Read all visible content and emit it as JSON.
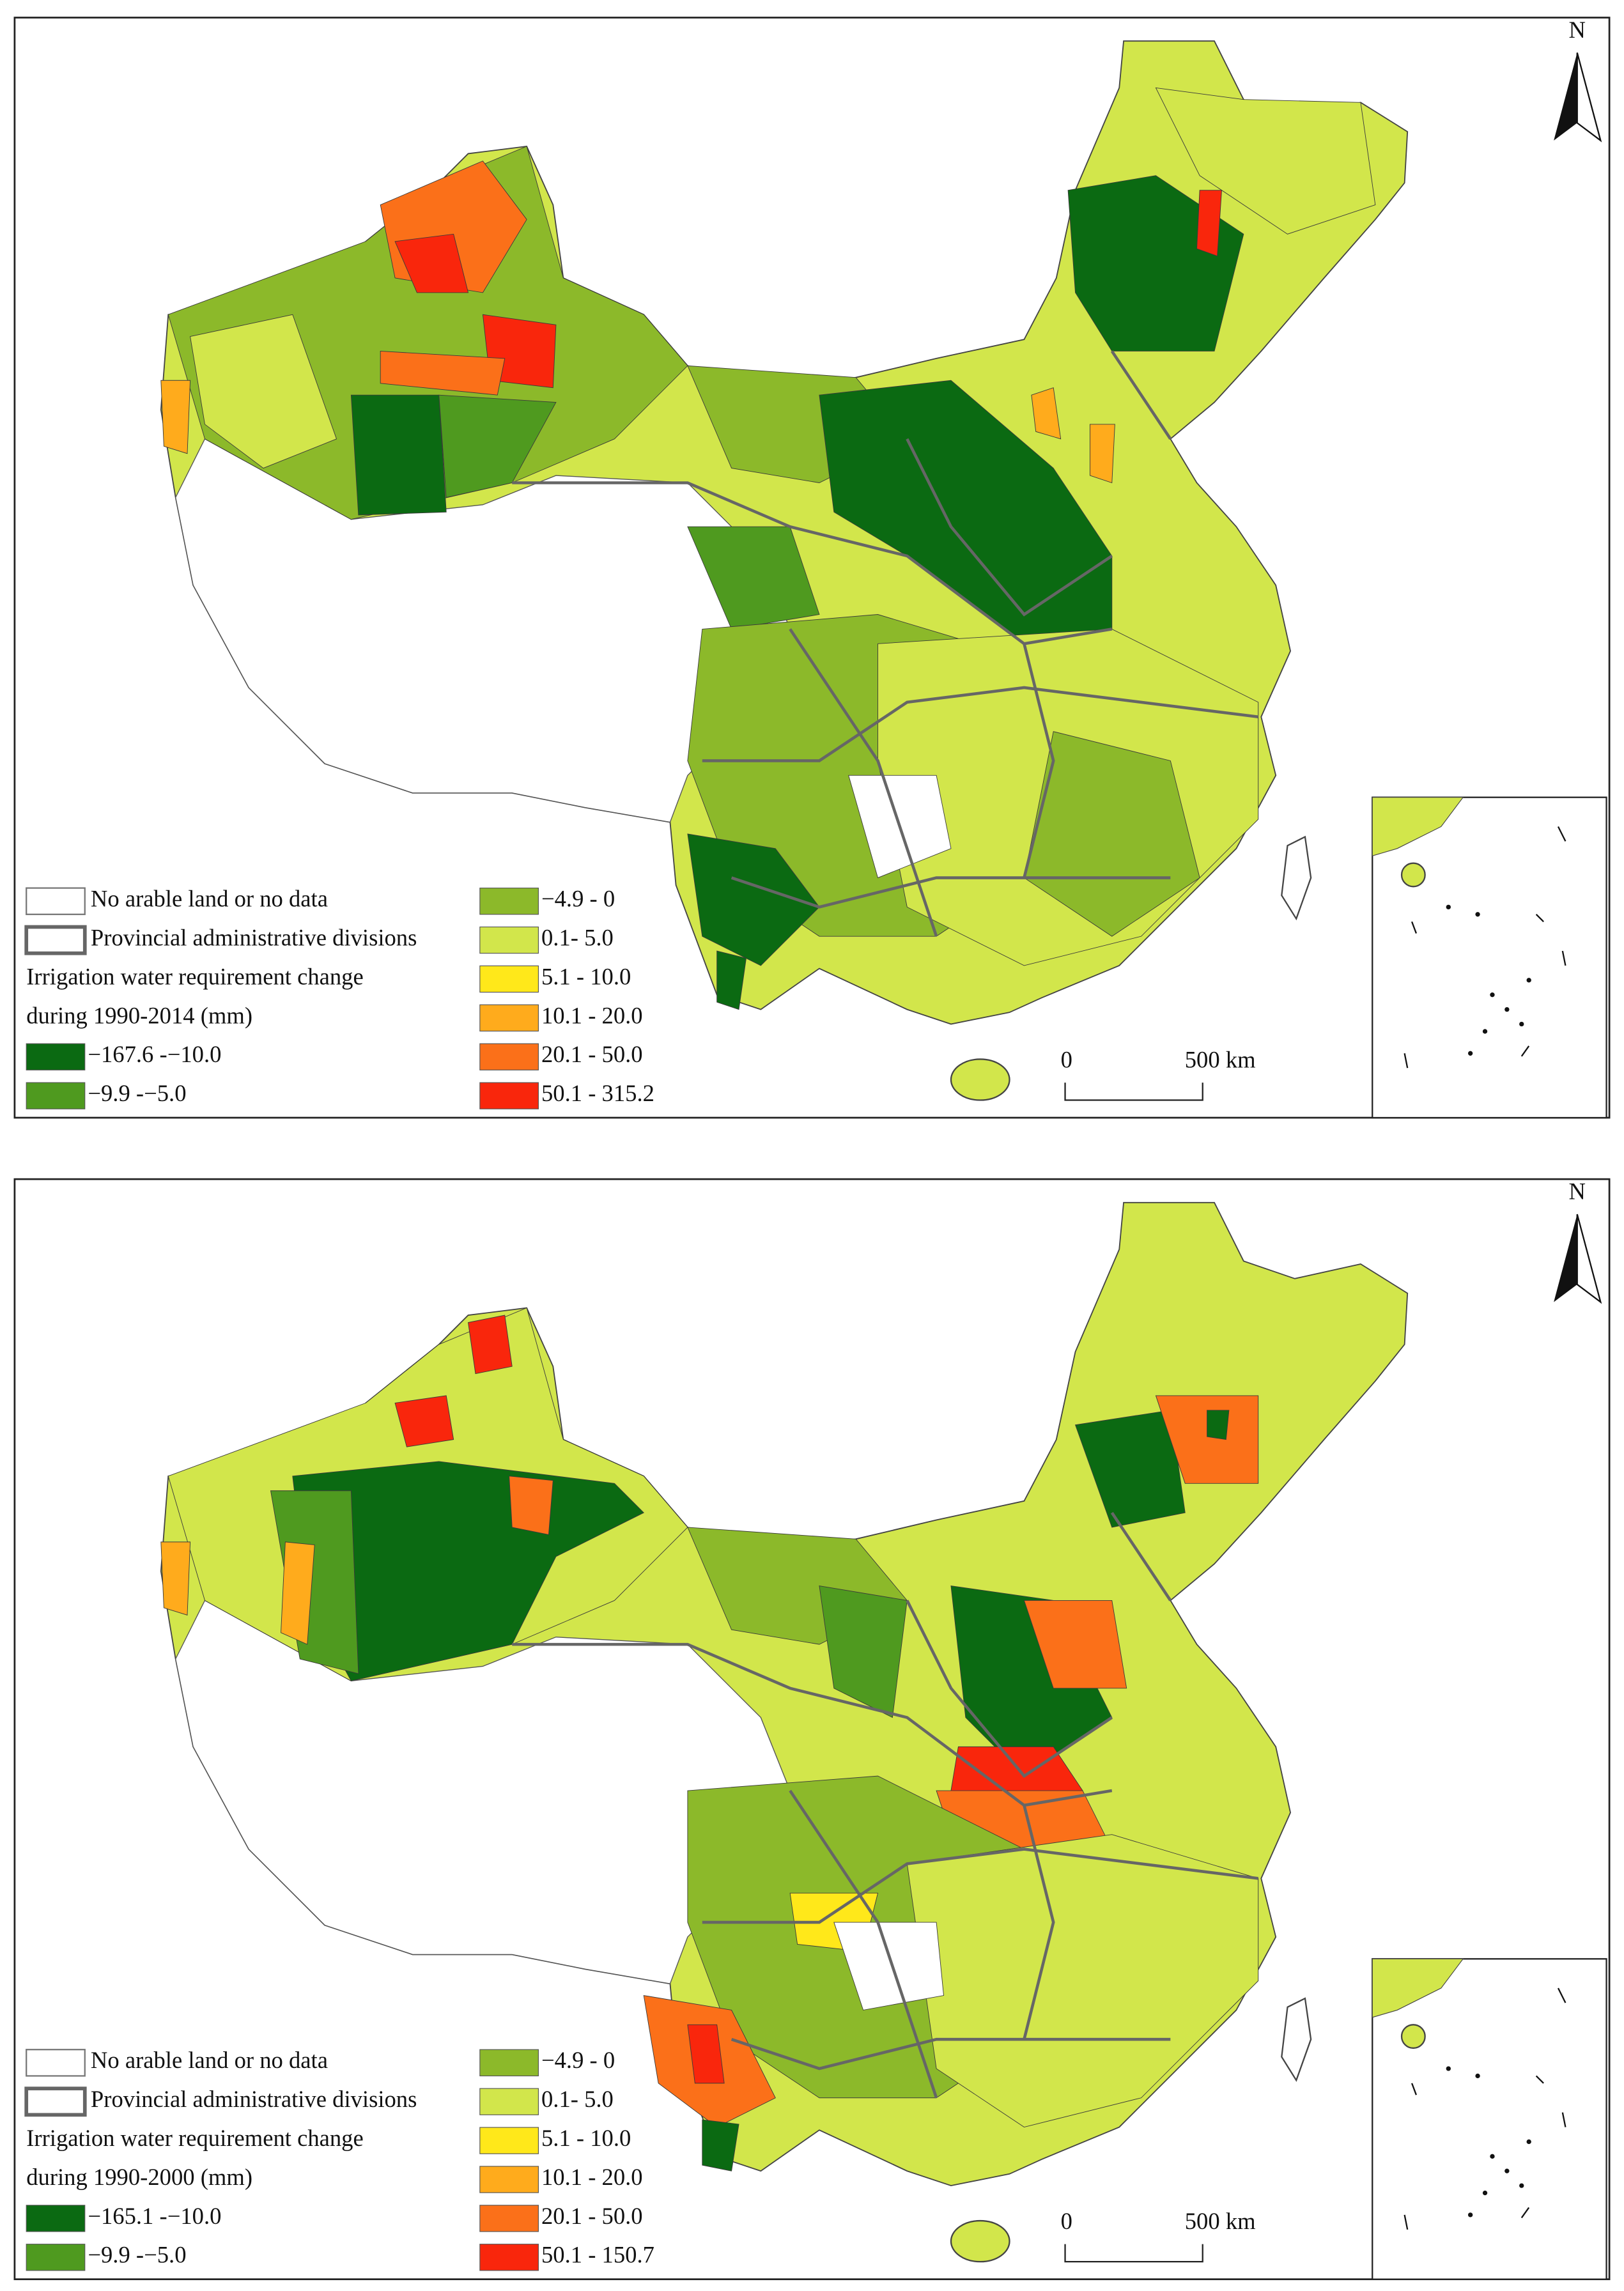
{
  "panels": [
    {
      "north": "N",
      "legend": {
        "no_data": {
          "label": "No arable land or no data",
          "color": "#ffffff"
        },
        "province": {
          "label": "Provincial administrative divisions",
          "color": "#666666"
        },
        "title_lines": [
          "Irrigation water requirement change",
          "during 1990-2014 (mm)"
        ],
        "classes": [
          {
            "label": "−167.6 -−10.0",
            "color": "#0b6a12"
          },
          {
            "label": "−9.9 -−5.0",
            "color": "#4f9a1f"
          },
          {
            "label": "−4.9 - 0",
            "color": "#8cb92a"
          },
          {
            "label": "0.1- 5.0",
            "color": "#d2e64b"
          },
          {
            "label": "5.1 - 10.0",
            "color": "#ffe81a"
          },
          {
            "label": "10.1 - 20.0",
            "color": "#ffab1c"
          },
          {
            "label": "20.1 - 50.0",
            "color": "#fb7019"
          },
          {
            "label": "50.1 - 315.2",
            "color": "#f9260c"
          }
        ]
      },
      "scale": {
        "start": "0",
        "end": "500 km"
      }
    },
    {
      "north": "N",
      "legend": {
        "no_data": {
          "label": "No arable land or no data",
          "color": "#ffffff"
        },
        "province": {
          "label": "Provincial administrative divisions",
          "color": "#666666"
        },
        "title_lines": [
          "Irrigation water requirement change",
          "during 1990-2000 (mm)"
        ],
        "classes": [
          {
            "label": "−165.1 -−10.0",
            "color": "#0b6a12"
          },
          {
            "label": "−9.9 -−5.0",
            "color": "#4f9a1f"
          },
          {
            "label": "−4.9 - 0",
            "color": "#8cb92a"
          },
          {
            "label": "0.1- 5.0",
            "color": "#d2e64b"
          },
          {
            "label": "5.1 - 10.0",
            "color": "#ffe81a"
          },
          {
            "label": "10.1 - 20.0",
            "color": "#ffab1c"
          },
          {
            "label": "20.1 - 50.0",
            "color": "#fb7019"
          },
          {
            "label": "50.1 - 150.7",
            "color": "#f9260c"
          }
        ]
      },
      "scale": {
        "start": "0",
        "end": "500 km"
      }
    }
  ]
}
